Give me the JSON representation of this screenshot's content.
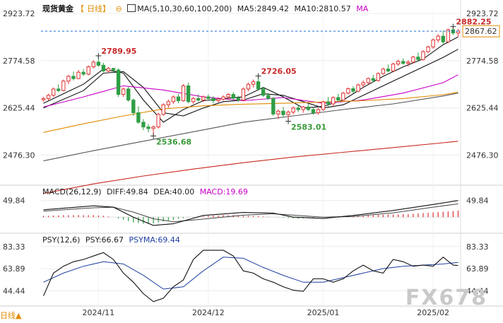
{
  "instrument": "现货黄金",
  "period_label": "日线",
  "ma_legend": {
    "params": "MA(5,10,30,60,100,200)",
    "ma5": "MA5:2849.42",
    "ma10": "MA10:2810.57",
    "ma_more": "MA"
  },
  "macd_legend": {
    "params": "MACD(26,12,9)",
    "diff": "DIFF:49.84",
    "dea": "DEA:40.00",
    "macd": "MACD:19.69"
  },
  "psy_legend": {
    "params": "PSY(12,6)",
    "psy": "PSY:66.67",
    "psyma": "PSYMA:69.44"
  },
  "watermark": "FX678",
  "colors": {
    "up": "#e03131",
    "down": "#2f9e44",
    "ma5": "#111111",
    "ma10": "#111111",
    "ma30": "#c800c8",
    "ma60": "#e08a00",
    "ma100": "#555555",
    "ma200": "#c8281e",
    "last_price_line": "#1f6fd1",
    "price_tag_border": "#e08a00",
    "high_label": "#c62828",
    "low_label": "#3a9a3a"
  },
  "chart_data": [
    {
      "type": "candlestick",
      "name": "现货黄金 日线",
      "y_ticks": [
        2923.72,
        2774.58,
        2625.44,
        2476.3
      ],
      "ylim": [
        2390,
        2935
      ],
      "x_tick_labels": [
        "2024/11",
        "2024/12",
        "2025/01",
        "2025/02"
      ],
      "x_tick_index": [
        11,
        33,
        56,
        78
      ],
      "last_price": 2867.62,
      "annotations": [
        {
          "text": "2789.95",
          "index": 11,
          "value": 2789.95,
          "kind": "high"
        },
        {
          "text": "2536.68",
          "index": 22,
          "value": 2536.68,
          "kind": "low"
        },
        {
          "text": "2726.05",
          "index": 43,
          "value": 2726.05,
          "kind": "high"
        },
        {
          "text": "2583.01",
          "index": 49,
          "value": 2583.01,
          "kind": "low"
        },
        {
          "text": "2882.25",
          "index": 82,
          "value": 2882.25,
          "kind": "high"
        }
      ],
      "ohlc": [
        [
          2651,
          2660,
          2645,
          2655
        ],
        [
          2655,
          2670,
          2648,
          2665
        ],
        [
          2665,
          2690,
          2660,
          2685
        ],
        [
          2685,
          2700,
          2675,
          2680
        ],
        [
          2680,
          2715,
          2678,
          2710
        ],
        [
          2710,
          2730,
          2700,
          2725
        ],
        [
          2725,
          2740,
          2712,
          2718
        ],
        [
          2718,
          2745,
          2716,
          2738
        ],
        [
          2738,
          2748,
          2726,
          2732
        ],
        [
          2732,
          2760,
          2728,
          2755
        ],
        [
          2755,
          2776,
          2750,
          2770
        ],
        [
          2770,
          2790,
          2755,
          2760
        ],
        [
          2760,
          2768,
          2738,
          2742
        ],
        [
          2742,
          2755,
          2736,
          2750
        ],
        [
          2750,
          2752,
          2735,
          2745
        ],
        [
          2745,
          2750,
          2660,
          2668
        ],
        [
          2668,
          2690,
          2660,
          2685
        ],
        [
          2685,
          2692,
          2645,
          2650
        ],
        [
          2650,
          2655,
          2600,
          2610
        ],
        [
          2610,
          2630,
          2575,
          2580
        ],
        [
          2580,
          2590,
          2555,
          2565
        ],
        [
          2565,
          2575,
          2548,
          2560
        ],
        [
          2560,
          2570,
          2537,
          2565
        ],
        [
          2565,
          2610,
          2560,
          2605
        ],
        [
          2605,
          2640,
          2600,
          2635
        ],
        [
          2635,
          2652,
          2625,
          2645
        ],
        [
          2645,
          2665,
          2638,
          2660
        ],
        [
          2660,
          2670,
          2640,
          2648
        ],
        [
          2648,
          2700,
          2645,
          2695
        ],
        [
          2695,
          2705,
          2640,
          2645
        ],
        [
          2645,
          2660,
          2638,
          2655
        ],
        [
          2655,
          2668,
          2645,
          2650
        ],
        [
          2650,
          2665,
          2644,
          2660
        ],
        [
          2660,
          2668,
          2648,
          2655
        ],
        [
          2655,
          2662,
          2640,
          2648
        ],
        [
          2648,
          2658,
          2642,
          2653
        ],
        [
          2653,
          2665,
          2648,
          2660
        ],
        [
          2660,
          2672,
          2652,
          2668
        ],
        [
          2668,
          2675,
          2650,
          2656
        ],
        [
          2656,
          2664,
          2644,
          2650
        ],
        [
          2650,
          2690,
          2646,
          2685
        ],
        [
          2685,
          2705,
          2678,
          2700
        ],
        [
          2700,
          2715,
          2690,
          2708
        ],
        [
          2708,
          2726,
          2680,
          2685
        ],
        [
          2685,
          2692,
          2660,
          2665
        ],
        [
          2665,
          2672,
          2650,
          2655
        ],
        [
          2655,
          2660,
          2600,
          2606
        ],
        [
          2606,
          2620,
          2590,
          2615
        ],
        [
          2615,
          2628,
          2598,
          2604
        ],
        [
          2604,
          2618,
          2583,
          2612
        ],
        [
          2612,
          2630,
          2605,
          2625
        ],
        [
          2625,
          2636,
          2612,
          2620
        ],
        [
          2620,
          2632,
          2610,
          2628
        ],
        [
          2628,
          2638,
          2615,
          2620
        ],
        [
          2620,
          2628,
          2604,
          2610
        ],
        [
          2610,
          2625,
          2604,
          2620
        ],
        [
          2620,
          2648,
          2616,
          2644
        ],
        [
          2644,
          2660,
          2630,
          2638
        ],
        [
          2638,
          2662,
          2632,
          2658
        ],
        [
          2658,
          2670,
          2645,
          2650
        ],
        [
          2650,
          2676,
          2648,
          2672
        ],
        [
          2672,
          2690,
          2668,
          2686
        ],
        [
          2686,
          2694,
          2672,
          2678
        ],
        [
          2678,
          2702,
          2675,
          2698
        ],
        [
          2698,
          2712,
          2690,
          2705
        ],
        [
          2705,
          2722,
          2700,
          2718
        ],
        [
          2718,
          2730,
          2706,
          2712
        ],
        [
          2712,
          2738,
          2708,
          2734
        ],
        [
          2734,
          2752,
          2730,
          2748
        ],
        [
          2748,
          2762,
          2738,
          2742
        ],
        [
          2742,
          2768,
          2740,
          2764
        ],
        [
          2764,
          2778,
          2758,
          2772
        ],
        [
          2772,
          2782,
          2762,
          2766
        ],
        [
          2766,
          2776,
          2756,
          2770
        ],
        [
          2770,
          2790,
          2766,
          2786
        ],
        [
          2786,
          2800,
          2774,
          2778
        ],
        [
          2778,
          2808,
          2775,
          2803
        ],
        [
          2803,
          2822,
          2798,
          2818
        ],
        [
          2818,
          2845,
          2812,
          2840
        ],
        [
          2840,
          2858,
          2832,
          2852
        ],
        [
          2852,
          2870,
          2828,
          2834
        ],
        [
          2834,
          2876,
          2830,
          2872
        ],
        [
          2872,
          2882,
          2856,
          2862
        ],
        [
          2862,
          2875,
          2850,
          2868
        ]
      ],
      "moving_averages": [
        {
          "name": "MA5",
          "color_key": "ma5",
          "x": [
            0,
            8,
            12,
            16,
            20,
            24,
            28,
            32,
            36,
            40,
            44,
            48,
            52,
            56,
            60,
            64,
            68,
            72,
            76,
            80,
            83
          ],
          "y": [
            2640,
            2700,
            2748,
            2735,
            2650,
            2580,
            2620,
            2648,
            2655,
            2660,
            2690,
            2660,
            2625,
            2630,
            2650,
            2690,
            2725,
            2755,
            2780,
            2825,
            2849.42
          ]
        },
        {
          "name": "MA10",
          "color_key": "ma10",
          "x": [
            0,
            8,
            12,
            16,
            20,
            24,
            28,
            32,
            36,
            40,
            44,
            48,
            52,
            56,
            60,
            64,
            68,
            72,
            76,
            80,
            83
          ],
          "y": [
            2625,
            2680,
            2735,
            2740,
            2690,
            2610,
            2600,
            2625,
            2645,
            2650,
            2670,
            2665,
            2645,
            2625,
            2635,
            2665,
            2695,
            2725,
            2755,
            2785,
            2810.57
          ]
        },
        {
          "name": "MA30",
          "color_key": "ma30",
          "x": [
            0,
            8,
            16,
            24,
            32,
            40,
            48,
            56,
            64,
            72,
            80,
            83
          ],
          "y": [
            2628,
            2660,
            2695,
            2682,
            2660,
            2648,
            2658,
            2640,
            2650,
            2672,
            2705,
            2730
          ]
        },
        {
          "name": "MA60",
          "color_key": "ma60",
          "x": [
            0,
            8,
            16,
            24,
            32,
            40,
            48,
            56,
            64,
            72,
            80,
            83
          ],
          "y": [
            2548,
            2575,
            2600,
            2622,
            2632,
            2637,
            2640,
            2644,
            2648,
            2655,
            2667,
            2675
          ]
        },
        {
          "name": "MA100",
          "color_key": "ma100",
          "x": [
            0,
            10,
            20,
            30,
            40,
            50,
            60,
            70,
            80,
            83
          ],
          "y": [
            2458,
            2490,
            2520,
            2550,
            2580,
            2600,
            2620,
            2638,
            2663,
            2672
          ]
        },
        {
          "name": "MA200",
          "color_key": "ma200",
          "x": [
            0,
            10,
            20,
            30,
            40,
            50,
            60,
            70,
            80,
            83
          ],
          "y": [
            2355,
            2385,
            2410,
            2432,
            2452,
            2470,
            2485,
            2500,
            2515,
            2520
          ]
        }
      ]
    },
    {
      "type": "macd",
      "name": "MACD(26,12,9)",
      "y_ticks": [
        49.84
      ],
      "ylim": [
        -40,
        62
      ],
      "diff": {
        "x": [
          0,
          10,
          14,
          18,
          22,
          26,
          32,
          40,
          46,
          50,
          56,
          62,
          70,
          78,
          83
        ],
        "y": [
          22,
          34,
          30,
          0,
          -25,
          -20,
          5,
          14,
          12,
          0,
          -4,
          5,
          20,
          38,
          49.84
        ]
      },
      "dea": {
        "x": [
          0,
          10,
          14,
          18,
          22,
          26,
          32,
          40,
          46,
          50,
          56,
          62,
          70,
          78,
          83
        ],
        "y": [
          18,
          28,
          30,
          15,
          -5,
          -14,
          -6,
          6,
          10,
          6,
          0,
          2,
          13,
          30,
          40.0
        ]
      },
      "histogram": [
        4,
        4,
        5,
        5,
        6,
        6,
        6,
        6,
        6,
        6,
        6,
        5,
        4,
        2,
        0,
        -4,
        -8,
        -12,
        -16,
        -18,
        -20,
        -20,
        -19,
        -16,
        -13,
        -10,
        -8,
        -5,
        -3,
        -1,
        1,
        2,
        3,
        4,
        5,
        5,
        6,
        6,
        6,
        5,
        4,
        4,
        3,
        3,
        2,
        1,
        0,
        -1,
        -2,
        -3,
        -4,
        -5,
        -4,
        -3,
        -2,
        -1,
        0,
        1,
        2,
        3,
        3,
        4,
        4,
        5,
        5,
        6,
        6,
        7,
        7,
        8,
        8,
        8,
        9,
        9,
        10,
        11,
        12,
        13,
        14,
        15,
        16,
        17,
        18,
        19.69
      ]
    },
    {
      "type": "psy",
      "name": "PSY(12,6)",
      "y_ticks": [
        83.33,
        63.89,
        44.44
      ],
      "ylim": [
        33,
        90
      ],
      "psy": {
        "x": [
          0,
          2,
          4,
          6,
          8,
          10,
          12,
          14,
          16,
          18,
          20,
          22,
          24,
          26,
          28,
          30,
          32,
          34,
          36,
          38,
          40,
          42,
          44,
          46,
          48,
          50,
          52,
          54,
          56,
          58,
          60,
          62,
          64,
          66,
          68,
          70,
          72,
          74,
          76,
          78,
          80,
          82,
          83
        ],
        "y": [
          40,
          60,
          66,
          70,
          72,
          75,
          78,
          72,
          60,
          52,
          42,
          35,
          38,
          48,
          54,
          72,
          80,
          80,
          80,
          75,
          62,
          60,
          55,
          52,
          48,
          45,
          44,
          55,
          55,
          52,
          55,
          62,
          67,
          62,
          60,
          72,
          70,
          66,
          67,
          66,
          74,
          67,
          66.67
        ]
      },
      "psyma": {
        "x": [
          0,
          4,
          8,
          12,
          16,
          20,
          24,
          28,
          32,
          36,
          40,
          44,
          48,
          52,
          56,
          60,
          64,
          68,
          72,
          76,
          80,
          83
        ],
        "y": [
          52,
          60,
          66,
          70,
          68,
          58,
          46,
          48,
          62,
          74,
          73,
          65,
          58,
          52,
          52,
          56,
          60,
          64,
          66,
          67,
          68,
          69.44
        ]
      }
    }
  ]
}
